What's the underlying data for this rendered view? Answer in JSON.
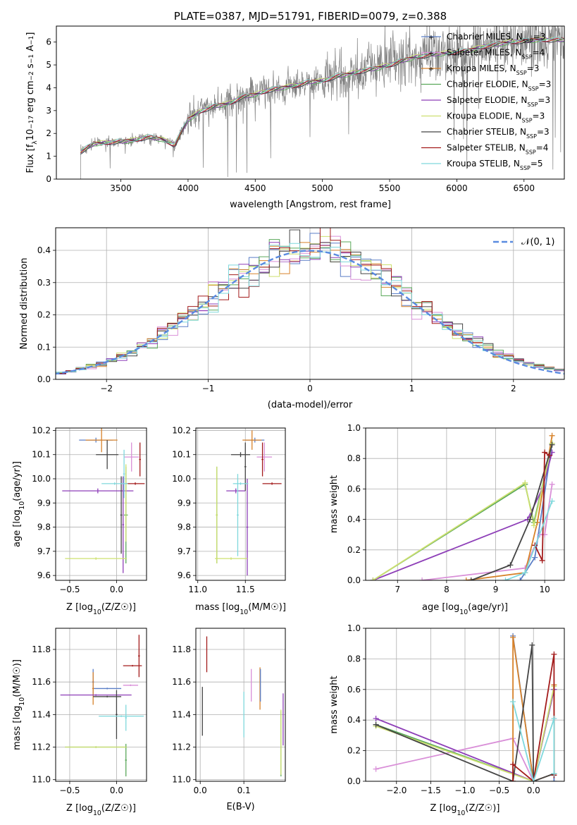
{
  "chart_data": [
    {
      "type": "line",
      "id": "spectrum",
      "title": "PLATE=0387, MJD=51791, FIBERID=0079, z=0.388",
      "xlabel": "wavelength [Angstrom, rest frame]",
      "ylabel": "Flux [f_λ 10^-17 erg cm^-2 s^-1 A^-1]",
      "xlim": [
        3020,
        6800
      ],
      "ylim": [
        0,
        6.7
      ],
      "xticks": [
        3500,
        4000,
        4500,
        5000,
        5500,
        6000,
        6500
      ],
      "yticks": [
        0,
        1,
        2,
        3,
        4,
        5,
        6
      ],
      "legend_position": "right",
      "spectrum_color": "#7f7f7f",
      "series": [
        {
          "name": "Chabrier MILES, N_SSP=3",
          "label_main": "Chabrier MILES, N",
          "label_sub": "SSP",
          "label_tail": "=3",
          "color": "#5b7fc7"
        },
        {
          "name": "Salpeter MILES, N_SSP=4",
          "label_main": "Salpeter MILES, N",
          "label_sub": "SSP",
          "label_tail": "=4",
          "color": "#d98fd8"
        },
        {
          "name": "Kroupa MILES, N_SSP=3",
          "label_main": "Kroupa MILES, N",
          "label_sub": "SSP",
          "label_tail": "=3",
          "color": "#d7822a"
        },
        {
          "name": "Chabrier ELODIE, N_SSP=3",
          "label_main": "Chabrier ELODIE, N",
          "label_sub": "SSP",
          "label_tail": "=3",
          "color": "#5aa85a"
        },
        {
          "name": "Salpeter ELODIE, N_SSP=3",
          "label_main": "Salpeter ELODIE, N",
          "label_sub": "SSP",
          "label_tail": "=3",
          "color": "#8e3fb8"
        },
        {
          "name": "Kroupa ELODIE, N_SSP=3",
          "label_main": "Kroupa ELODIE, N",
          "label_sub": "SSP",
          "label_tail": "=3",
          "color": "#cde070"
        },
        {
          "name": "Chabrier STELIB, N_SSP=3",
          "label_main": "Chabrier STELIB, N",
          "label_sub": "SSP",
          "label_tail": "=3",
          "color": "#444444"
        },
        {
          "name": "Salpeter STELIB, N_SSP=4",
          "label_main": "Salpeter STELIB, N",
          "label_sub": "SSP",
          "label_tail": "=4",
          "color": "#a31b1b"
        },
        {
          "name": "Kroupa STELIB, N_SSP=5",
          "label_main": "Kroupa STELIB, N",
          "label_sub": "SSP",
          "label_tail": "=5",
          "color": "#7fd8dc"
        }
      ],
      "model_x": [
        3200,
        3300,
        3400,
        3500,
        3600,
        3700,
        3800,
        3900,
        4000,
        4100,
        4200,
        4300,
        4400,
        4500,
        4600,
        4700,
        4800,
        4900,
        5000,
        5100,
        5200,
        5300,
        5400,
        5500,
        5600,
        5700,
        5800,
        5900,
        6000,
        6100,
        6200,
        6300,
        6400,
        6500,
        6600,
        6700,
        6800
      ],
      "model_y": [
        1.2,
        1.55,
        1.6,
        1.65,
        1.7,
        1.85,
        1.75,
        1.5,
        2.6,
        3.0,
        3.2,
        3.3,
        3.6,
        3.7,
        3.9,
        4.0,
        4.1,
        4.25,
        4.3,
        4.5,
        4.6,
        4.75,
        4.85,
        5.0,
        5.2,
        5.35,
        5.45,
        5.5,
        5.55,
        5.65,
        5.8,
        5.9,
        6.0,
        6.05,
        6.1,
        6.1,
        6.1
      ]
    },
    {
      "type": "bar",
      "id": "residuals",
      "xlabel": "(data-model)/error",
      "ylabel": "Normed distribution",
      "xlim": [
        -2.5,
        2.5
      ],
      "ylim": [
        0,
        0.47
      ],
      "xticks": [
        -2,
        -1,
        0,
        1,
        2
      ],
      "yticks": [
        0.0,
        0.1,
        0.2,
        0.3,
        0.4
      ],
      "legend": [
        {
          "name": "N(0,1)",
          "label": "𝒩(0, 1)",
          "color": "#5a8be0",
          "style": "dashed"
        }
      ],
      "legend_position": "top-right",
      "bin_width": 0.1
    },
    {
      "type": "scatter",
      "id": "age-Z",
      "xlabel_main": "Z [log",
      "xlabel_sub": "10",
      "xlabel_tail": "(Z/Z☉)]",
      "ylabel": "age [log10(age/yr)]",
      "ylabel_main": "age  [log",
      "ylabel_sub": "10",
      "ylabel_tail": "(age/yr)]",
      "xlim": [
        -0.65,
        0.32
      ],
      "ylim": [
        9.58,
        10.21
      ],
      "xticks": [
        -0.5,
        0.0
      ],
      "yticks": [
        9.6,
        9.7,
        9.8,
        9.9,
        10.0,
        10.1,
        10.2
      ],
      "points": [
        {
          "series": 0,
          "x": -0.22,
          "xerr": 0.18,
          "y": 10.16,
          "yerr": 0.01
        },
        {
          "series": 1,
          "x": 0.16,
          "xerr": 0.08,
          "y": 10.09,
          "yerr": 0.06
        },
        {
          "series": 2,
          "x": -0.16,
          "xerr": 0.17,
          "y": 10.16,
          "yerr": 0.05
        },
        {
          "series": 3,
          "x": 0.1,
          "xerr": 0.02,
          "y": 9.85,
          "yerr": 0.2
        },
        {
          "series": 4,
          "x": -0.2,
          "xerr": 0.38,
          "y": 9.95,
          "yerr": 0.01
        },
        {
          "series": 4,
          "x": 0.07,
          "xerr": 0.01,
          "y": 9.81,
          "yerr": 0.2
        },
        {
          "series": 5,
          "x": -0.22,
          "xerr": 0.33,
          "y": 9.67,
          "yerr": 0.005
        },
        {
          "series": 5,
          "x": 0.1,
          "xerr": 0.01,
          "y": 9.9,
          "yerr": 0.16
        },
        {
          "series": 6,
          "x": -0.1,
          "xerr": 0.12,
          "y": 10.1,
          "yerr": 0.06
        },
        {
          "series": 6,
          "x": 0.05,
          "xerr": 0.01,
          "y": 9.85,
          "yerr": 0.16
        },
        {
          "series": 7,
          "x": 0.2,
          "xerr": 0.1,
          "y": 9.98,
          "yerr": 0.005
        },
        {
          "series": 7,
          "x": 0.25,
          "xerr": 0.01,
          "y": 10.08,
          "yerr": 0.07
        },
        {
          "series": 8,
          "x": -0.02,
          "xerr": 0.14,
          "y": 9.98,
          "yerr": 0.005
        },
        {
          "series": 8,
          "x": 0.08,
          "xerr": 0.01,
          "y": 10.02,
          "yerr": 0.1
        }
      ]
    },
    {
      "type": "scatter",
      "id": "age-mass",
      "xlabel_main": "mass [log",
      "xlabel_sub": "10",
      "xlabel_tail": "(M/M☉)]",
      "xlim": [
        10.98,
        11.92
      ],
      "ylim": [
        9.58,
        10.21
      ],
      "xticks": [
        11.0,
        11.5
      ],
      "yticks": [
        9.6,
        9.7,
        9.8,
        9.9,
        10.0,
        10.1,
        10.2
      ],
      "points": [
        {
          "series": 0,
          "x": 11.6,
          "xerr": 0.1,
          "y": 10.16,
          "yerr": 0.01
        },
        {
          "series": 1,
          "x": 11.7,
          "xerr": 0.08,
          "y": 10.09,
          "yerr": 0.06
        },
        {
          "series": 2,
          "x": 11.57,
          "xerr": 0.1,
          "y": 10.16,
          "yerr": 0.04
        },
        {
          "series": 3,
          "x": 11.2,
          "xerr": 0.01,
          "y": 9.85,
          "yerr": 0.2
        },
        {
          "series": 4,
          "x": 11.4,
          "xerr": 0.1,
          "y": 9.95,
          "yerr": 0.01
        },
        {
          "series": 4,
          "x": 11.52,
          "xerr": 0.01,
          "y": 9.8,
          "yerr": 0.2
        },
        {
          "series": 5,
          "x": 11.2,
          "xerr": 0.01,
          "y": 9.85,
          "yerr": 0.2
        },
        {
          "series": 5,
          "x": 11.35,
          "xerr": 0.17,
          "y": 9.67,
          "yerr": 0.005
        },
        {
          "series": 6,
          "x": 11.45,
          "xerr": 0.1,
          "y": 10.1,
          "yerr": 0.01
        },
        {
          "series": 6,
          "x": 11.5,
          "xerr": 0.01,
          "y": 10.05,
          "yerr": 0.1
        },
        {
          "series": 7,
          "x": 11.78,
          "xerr": 0.1,
          "y": 9.98,
          "yerr": 0.005
        },
        {
          "series": 7,
          "x": 11.68,
          "xerr": 0.01,
          "y": 10.08,
          "yerr": 0.07
        },
        {
          "series": 8,
          "x": 11.42,
          "xerr": 0.01,
          "y": 9.85,
          "yerr": 0.17
        },
        {
          "series": 8,
          "x": 11.45,
          "xerr": 0.08,
          "y": 9.98,
          "yerr": 0.005
        }
      ]
    },
    {
      "type": "line",
      "id": "weight-age",
      "xlabel_main": "age  [log",
      "xlabel_sub": "10",
      "xlabel_tail": "(age/yr)]",
      "ylabel": "mass weight",
      "xlim": [
        6.35,
        10.4
      ],
      "ylim": [
        0,
        1.0
      ],
      "xticks": [
        7,
        8,
        9,
        10
      ],
      "yticks": [
        0.0,
        0.2,
        0.4,
        0.6,
        0.8,
        1.0
      ],
      "series": [
        {
          "series": 0,
          "x": [
            9.5,
            9.8,
            10.15
          ],
          "y": [
            0.0,
            0.15,
            0.9
          ]
        },
        {
          "series": 1,
          "x": [
            7.5,
            9.6,
            9.9,
            10.0,
            10.15
          ],
          "y": [
            0.0,
            0.08,
            0.3,
            0.3,
            0.63
          ]
        },
        {
          "series": 2,
          "x": [
            8.4,
            9.6,
            9.85,
            10.15
          ],
          "y": [
            0.0,
            0.05,
            0.38,
            0.95
          ]
        },
        {
          "series": 3,
          "x": [
            6.5,
            9.6,
            9.78,
            10.15
          ],
          "y": [
            0.0,
            0.63,
            0.38,
            0.9
          ]
        },
        {
          "series": 4,
          "x": [
            6.5,
            9.65,
            9.95,
            10.15
          ],
          "y": [
            0.0,
            0.4,
            0.6,
            0.84
          ]
        },
        {
          "series": 5,
          "x": [
            6.5,
            9.6,
            9.78,
            10.15
          ],
          "y": [
            0.0,
            0.64,
            0.36,
            0.9
          ]
        },
        {
          "series": 6,
          "x": [
            8.5,
            9.3,
            9.7,
            10.15
          ],
          "y": [
            0.0,
            0.1,
            0.4,
            0.89
          ]
        },
        {
          "series": 7,
          "x": [
            9.8,
            9.95,
            10.0,
            10.1
          ],
          "y": [
            0.23,
            0.13,
            0.84,
            0.82
          ]
        },
        {
          "series": 8,
          "x": [
            9.2,
            9.6,
            10.15
          ],
          "y": [
            0.0,
            0.05,
            0.52
          ]
        }
      ]
    },
    {
      "type": "scatter",
      "id": "mass-Z",
      "xlabel_main": "Z [log",
      "xlabel_sub": "10",
      "xlabel_tail": "(Z/Z☉)]",
      "ylabel_main": "mass [log",
      "ylabel_sub": "10",
      "ylabel_tail": "(M/M☉)]",
      "xlim": [
        -0.65,
        0.32
      ],
      "ylim": [
        10.99,
        11.93
      ],
      "xticks": [
        -0.5,
        0.0
      ],
      "yticks": [
        11.0,
        11.2,
        11.4,
        11.6,
        11.8
      ],
      "points": [
        {
          "series": 0,
          "x": -0.1,
          "xerr": 0.15,
          "y": 11.56,
          "yerr": 0.005
        },
        {
          "series": 0,
          "x": -0.25,
          "xerr": 0.01,
          "y": 11.6,
          "yerr": 0.08
        },
        {
          "series": 1,
          "x": 0.15,
          "xerr": 0.08,
          "y": 11.58,
          "yerr": 0.005
        },
        {
          "series": 2,
          "x": -0.25,
          "xerr": 0.01,
          "y": 11.56,
          "yerr": 0.1
        },
        {
          "series": 3,
          "x": -0.22,
          "xerr": 0.33,
          "y": 11.2,
          "yerr": 0.005
        },
        {
          "series": 3,
          "x": 0.1,
          "xerr": 0.01,
          "y": 11.12,
          "yerr": 0.1
        },
        {
          "series": 4,
          "x": -0.22,
          "xerr": 0.38,
          "y": 11.52,
          "yerr": 0.005
        },
        {
          "series": 5,
          "x": -0.22,
          "xerr": 0.33,
          "y": 11.2,
          "yerr": 0.005
        },
        {
          "series": 6,
          "x": -0.1,
          "xerr": 0.15,
          "y": 11.51,
          "yerr": 0.005
        },
        {
          "series": 6,
          "x": 0.0,
          "xerr": 0.01,
          "y": 11.4,
          "yerr": 0.15
        },
        {
          "series": 7,
          "x": 0.17,
          "xerr": 0.1,
          "y": 11.7,
          "yerr": 0.005
        },
        {
          "series": 7,
          "x": 0.24,
          "xerr": 0.01,
          "y": 11.76,
          "yerr": 0.13
        },
        {
          "series": 8,
          "x": 0.05,
          "xerr": 0.24,
          "y": 11.39,
          "yerr": 0.005
        },
        {
          "series": 8,
          "x": 0.1,
          "xerr": 0.01,
          "y": 11.38,
          "yerr": 0.08
        }
      ]
    },
    {
      "type": "scatter",
      "id": "mass-ebv",
      "xlabel": "E(B-V)",
      "xlim": [
        -0.01,
        0.195
      ],
      "ylim": [
        10.99,
        11.93
      ],
      "xticks": [
        0.0,
        0.1
      ],
      "yticks": [
        11.0,
        11.2,
        11.4,
        11.6,
        11.8
      ],
      "points": [
        {
          "series": 6,
          "x": 0.005,
          "xerr": 0,
          "y": 11.42,
          "yerr": 0.15
        },
        {
          "series": 7,
          "x": 0.015,
          "xerr": 0,
          "y": 11.77,
          "yerr": 0.11
        },
        {
          "series": 8,
          "x": 0.1,
          "xerr": 0,
          "y": 11.4,
          "yerr": 0.14
        },
        {
          "series": 1,
          "x": 0.117,
          "xerr": 0,
          "y": 11.58,
          "yerr": 0.1
        },
        {
          "series": 2,
          "x": 0.137,
          "xerr": 0,
          "y": 11.56,
          "yerr": 0.13
        },
        {
          "series": 0,
          "x": 0.138,
          "xerr": 0,
          "y": 11.58,
          "yerr": 0.1
        },
        {
          "series": 3,
          "x": 0.185,
          "xerr": 0,
          "y": 11.22,
          "yerr": 0.2
        },
        {
          "series": 4,
          "x": 0.19,
          "xerr": 0,
          "y": 11.37,
          "yerr": 0.16
        },
        {
          "series": 5,
          "x": 0.185,
          "xerr": 0,
          "y": 11.23,
          "yerr": 0.2
        }
      ]
    },
    {
      "type": "line",
      "id": "weight-Z",
      "xlabel_main": "Z [log",
      "xlabel_sub": "10",
      "xlabel_tail": "(Z/Z☉)]",
      "ylabel": "mass weight",
      "xlim": [
        -2.45,
        0.45
      ],
      "ylim": [
        0,
        1.0
      ],
      "xticks": [
        -2.0,
        -1.5,
        -1.0,
        -0.5,
        0.0
      ],
      "yticks": [
        0.0,
        0.2,
        0.4,
        0.6,
        0.8,
        1.0
      ],
      "series": [
        {
          "series": 0,
          "x": [
            -0.3,
            0.0,
            0.3,
            0.3
          ],
          "y": [
            0.95,
            0.0,
            0.05,
            0.0
          ]
        },
        {
          "series": 1,
          "x": [
            -2.3,
            -0.3,
            0.0,
            0.3
          ],
          "y": [
            0.08,
            0.28,
            0.0,
            0.6
          ]
        },
        {
          "series": 2,
          "x": [
            -0.3,
            -0.3,
            0.0,
            0.3,
            0.3
          ],
          "y": [
            0.0,
            0.94,
            0.0,
            0.05,
            0.63
          ]
        },
        {
          "series": 3,
          "x": [
            -2.3,
            0.0,
            0.3
          ],
          "y": [
            0.37,
            0.0,
            0.6
          ]
        },
        {
          "series": 4,
          "x": [
            -2.3,
            0.0,
            0.3
          ],
          "y": [
            0.41,
            0.0,
            0.6
          ]
        },
        {
          "series": 5,
          "x": [
            -2.3,
            0.0,
            0.3
          ],
          "y": [
            0.36,
            0.0,
            0.62
          ]
        },
        {
          "series": 6,
          "x": [
            -2.3,
            -0.3,
            -0.02,
            0.0,
            0.3
          ],
          "y": [
            0.37,
            0.0,
            0.89,
            0.0,
            0.05
          ]
        },
        {
          "series": 7,
          "x": [
            -0.3,
            -0.3,
            0.0,
            0.3,
            0.3
          ],
          "y": [
            0.0,
            0.11,
            0.0,
            0.83,
            0.04
          ]
        },
        {
          "series": 8,
          "x": [
            -0.3,
            0.0,
            0.3,
            0.3
          ],
          "y": [
            0.52,
            0.0,
            0.41,
            0.05
          ]
        }
      ]
    }
  ]
}
